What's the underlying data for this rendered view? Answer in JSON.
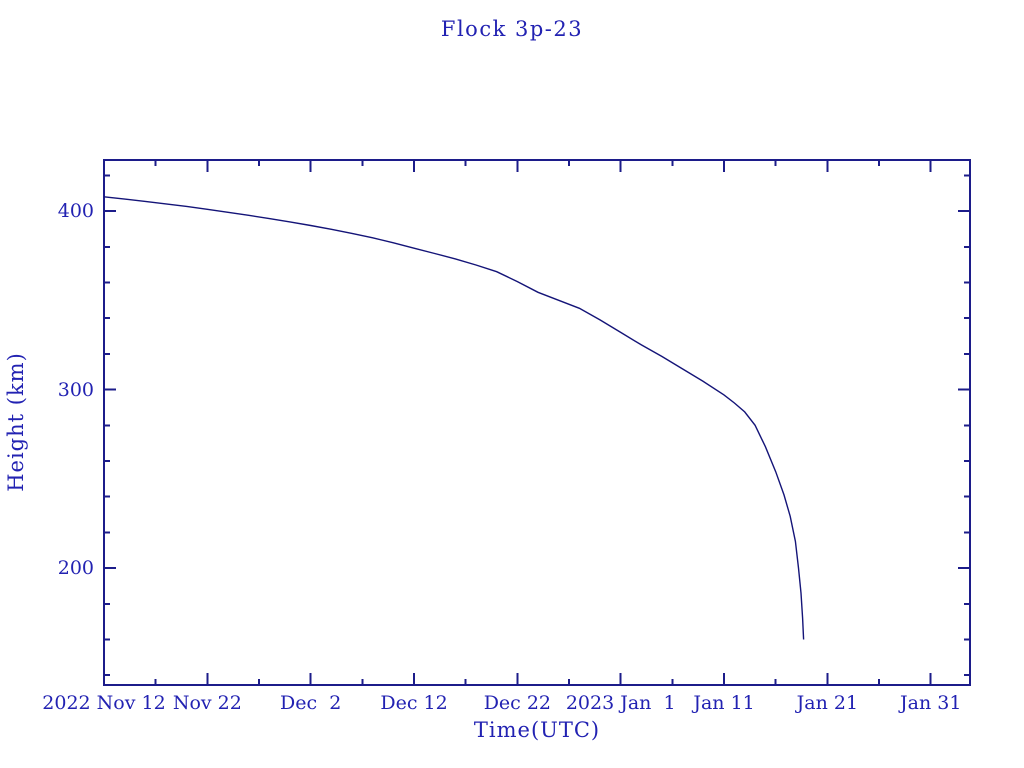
{
  "page": {
    "background": "#ffffff"
  },
  "chart_data": {
    "type": "line",
    "title": "Flock 3p-23",
    "xlabel": "Time(UTC)",
    "ylabel": "Height (km)",
    "x_unit": "days since 2022 Nov 12 00:00 UTC",
    "xlim": [
      0,
      83.8
    ],
    "ylim": [
      134.5,
      428.6
    ],
    "grid": false,
    "legend_position": "none",
    "frame": "box with inward ticks on all four sides",
    "x_major_ticks": [
      {
        "day": 0,
        "label": "2022 Nov 12"
      },
      {
        "day": 10,
        "label": "Nov 22"
      },
      {
        "day": 20,
        "label": "Dec  2"
      },
      {
        "day": 30,
        "label": "Dec 12"
      },
      {
        "day": 40,
        "label": "Dec 22"
      },
      {
        "day": 50,
        "label": "2023 Jan  1"
      },
      {
        "day": 60,
        "label": "Jan 11"
      },
      {
        "day": 70,
        "label": "Jan 21"
      },
      {
        "day": 80,
        "label": "Jan 31"
      }
    ],
    "x_minor_ticks": [
      5,
      15,
      25,
      35,
      45,
      55,
      65,
      75
    ],
    "y_major_ticks": [
      {
        "value": 200,
        "label": "200"
      },
      {
        "value": 300,
        "label": "300"
      },
      {
        "value": 400,
        "label": "400"
      }
    ],
    "y_minor_ticks": [
      140,
      160,
      180,
      220,
      240,
      260,
      280,
      320,
      340,
      360,
      380,
      420
    ],
    "series": [
      {
        "name": "Flock 3p-23 orbital height",
        "points_day_km": [
          [
            0,
            408.0
          ],
          [
            2,
            406.7
          ],
          [
            4,
            405.4
          ],
          [
            6,
            404.0
          ],
          [
            8,
            402.6
          ],
          [
            10,
            401.0
          ],
          [
            12,
            399.3
          ],
          [
            14,
            397.6
          ],
          [
            16,
            395.8
          ],
          [
            18,
            393.9
          ],
          [
            20,
            391.9
          ],
          [
            22,
            389.8
          ],
          [
            24,
            387.5
          ],
          [
            26,
            385.0
          ],
          [
            28,
            382.2
          ],
          [
            30,
            379.2
          ],
          [
            32,
            376.2
          ],
          [
            34,
            373.2
          ],
          [
            36,
            369.8
          ],
          [
            38,
            366.0
          ],
          [
            40,
            360.5
          ],
          [
            42,
            354.5
          ],
          [
            44,
            350.0
          ],
          [
            46,
            345.5
          ],
          [
            48,
            339.0
          ],
          [
            50,
            332.0
          ],
          [
            52,
            325.0
          ],
          [
            54,
            318.5
          ],
          [
            56,
            311.5
          ],
          [
            58,
            304.5
          ],
          [
            60,
            297.0
          ],
          [
            61,
            292.5
          ],
          [
            62,
            287.5
          ],
          [
            63,
            280.0
          ],
          [
            64,
            268.0
          ],
          [
            65,
            254.0
          ],
          [
            65.8,
            241.0
          ],
          [
            66.4,
            229.0
          ],
          [
            66.9,
            215.0
          ],
          [
            67.2,
            200.0
          ],
          [
            67.45,
            186.0
          ],
          [
            67.6,
            172.0
          ],
          [
            67.7,
            160.0
          ]
        ]
      }
    ],
    "colors": {
      "line": "#141478",
      "frame": "#1c1c8a",
      "text": "#2222b2",
      "background": "#ffffff"
    }
  }
}
